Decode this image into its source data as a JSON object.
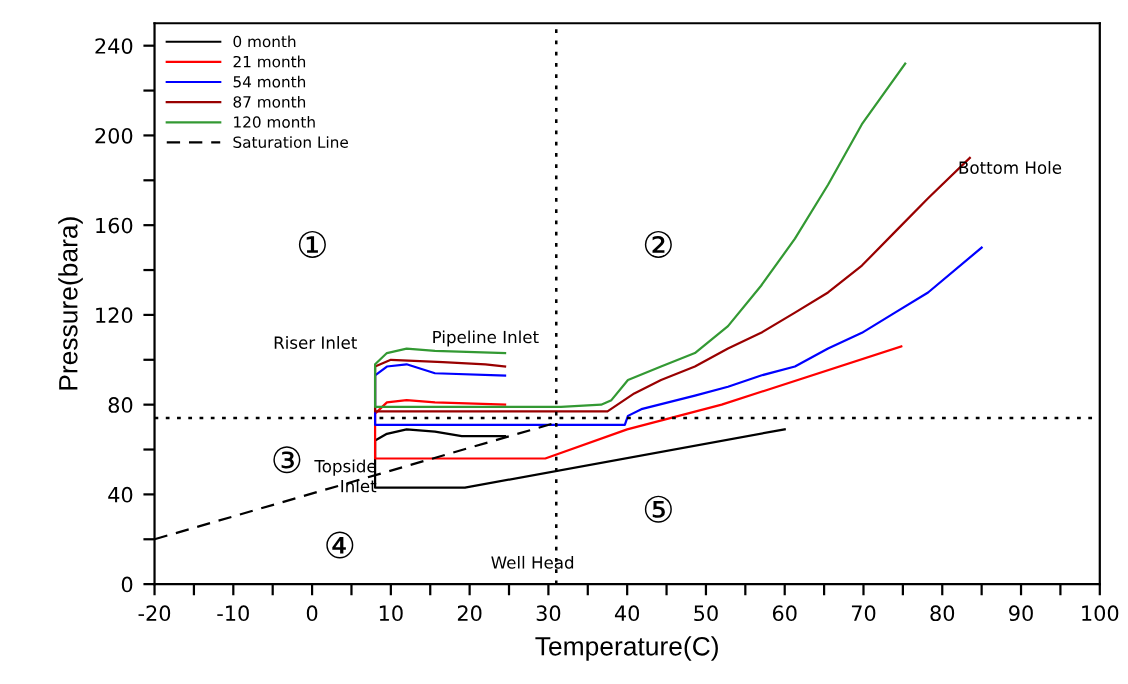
{
  "chart_data": {
    "type": "line",
    "xlabel": "Temperature(C)",
    "ylabel": "Pressure(bara)",
    "xlim": [
      -20,
      100
    ],
    "ylim": [
      0,
      250
    ],
    "xticks": [
      -20,
      {
        "value": -15,
        "label": null
      },
      -10,
      {
        "value": -5,
        "label": null
      },
      0,
      {
        "value": 5,
        "label": null
      },
      10,
      {
        "value": 15,
        "label": null
      },
      20,
      {
        "value": 25,
        "label": null
      },
      30,
      {
        "value": 35,
        "label": null
      },
      40,
      {
        "value": 45,
        "label": null
      },
      50,
      {
        "value": 55,
        "label": null
      },
      60,
      {
        "value": 65,
        "label": null
      },
      70,
      {
        "value": 75,
        "label": null
      },
      80,
      {
        "value": 85,
        "label": null
      },
      90,
      {
        "value": 95,
        "label": null
      },
      100
    ],
    "yticks": [
      0,
      {
        "value": 20,
        "label": null
      },
      40,
      {
        "value": 60,
        "label": null
      },
      80,
      {
        "value": 100,
        "label": null
      },
      120,
      {
        "value": 140,
        "label": null
      },
      160,
      {
        "value": 180,
        "label": null
      },
      200,
      {
        "value": 220,
        "label": null
      },
      240
    ],
    "grid": false,
    "legend": "top left",
    "marker": "none",
    "series": [
      {
        "name": "0 month",
        "color": "#000000",
        "line_style": "solid",
        "x": [
          60,
          19.4,
          8,
          8,
          9.5,
          12,
          15.6,
          19,
          24.5
        ],
        "values": [
          69,
          43,
          43,
          64,
          67,
          69,
          68,
          66,
          66
        ]
      },
      {
        "name": "21 month",
        "color": "#ff0000",
        "line_style": "solid",
        "x": [
          74.8,
          52,
          40,
          29.6,
          8,
          8,
          9.5,
          12,
          15.6,
          24.5
        ],
        "values": [
          106,
          80,
          69,
          56,
          56,
          76,
          81,
          82,
          81,
          80
        ]
      },
      {
        "name": "54 month",
        "color": "#0000ff",
        "line_style": "solid",
        "x": [
          85.0,
          78.2,
          74.0,
          69.8,
          65.5,
          61.3,
          57.0,
          52.8,
          48.6,
          41.8,
          40.1,
          39.7,
          31.6,
          8,
          8,
          9.5,
          12,
          15.6,
          24.5
        ],
        "values": [
          150,
          130,
          121,
          112,
          105,
          97,
          93,
          88,
          84,
          78,
          75,
          71,
          71,
          71,
          93,
          97,
          98,
          94,
          93
        ]
      },
      {
        "name": "87 month",
        "color": "#990000",
        "line_style": "solid",
        "x": [
          83.5,
          78.2,
          74.0,
          69.8,
          65.5,
          61.3,
          57.0,
          52.8,
          48.6,
          44.3,
          40.9,
          37.5,
          31.6,
          8,
          8,
          10,
          16.6,
          22,
          24.5
        ],
        "values": [
          190,
          172,
          157,
          142,
          130,
          121,
          112,
          105,
          97,
          91,
          85,
          77,
          77,
          77,
          97,
          100,
          99,
          98,
          97
        ]
      },
      {
        "name": "120 month",
        "color": "#339933",
        "line_style": "solid",
        "x": [
          75.3,
          69.8,
          65.5,
          61.3,
          57.0,
          52.8,
          48.6,
          44.3,
          40.1,
          38.0,
          36.7,
          31.6,
          8,
          8,
          9.5,
          12,
          15.6,
          24.5
        ],
        "values": [
          232,
          205,
          178,
          154,
          133,
          115,
          103,
          97,
          91,
          82,
          80,
          79,
          79,
          98,
          103,
          105,
          104,
          103
        ]
      },
      {
        "name": "Saturation Line",
        "color": "#000000",
        "line_style": "dashed",
        "x": [
          -20,
          31
        ],
        "values": [
          20,
          72
        ]
      }
    ],
    "ref_lines": [
      {
        "axis": "y",
        "value": 74,
        "color": "#000000",
        "line_style": "dotted"
      },
      {
        "axis": "x",
        "value": 31,
        "color": "#000000",
        "line_style": "dotted"
      }
    ],
    "annotations": [
      "①",
      "②",
      "③",
      "④",
      "⑤",
      "Riser Inlet",
      "Pipeline Inlet",
      "Topside\nInlet",
      "Well Head",
      "Bottom Hole"
    ]
  }
}
